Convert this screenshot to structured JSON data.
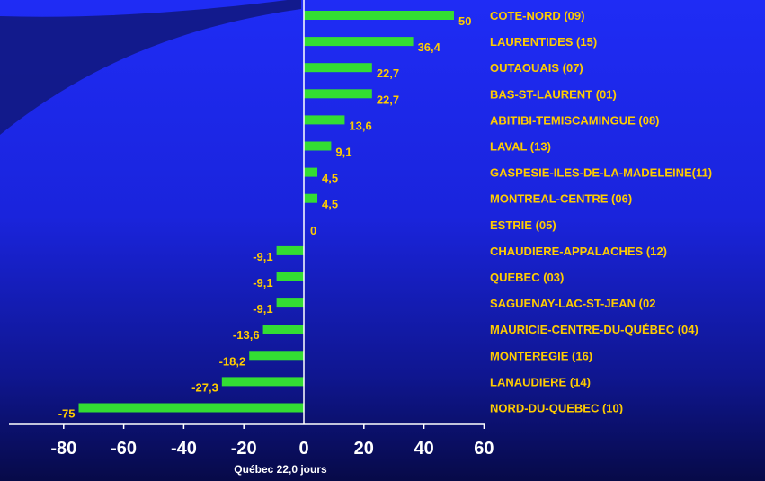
{
  "chart_data": {
    "type": "bar",
    "orientation": "horizontal",
    "categories": [
      "COTE-NORD (09)",
      "LAURENTIDES (15)",
      "OUTAOUAIS (07)",
      "BAS-ST-LAURENT (01)",
      "ABITIBI-TEMISCAMINGUE (08)",
      "LAVAL (13)",
      "GASPESIE-ILES-DE-LA-MADELEINE(11)",
      "MONTREAL-CENTRE (06)",
      "ESTRIE (05)",
      "CHAUDIERE-APPALACHES (12)",
      "QUEBEC (03)",
      "SAGUENAY-LAC-ST-JEAN (02",
      "MAURICIE-CENTRE-DU-QUÉBEC (04)",
      "MONTEREGIE (16)",
      "LANAUDIERE (14)",
      "NORD-DU-QUEBEC (10)"
    ],
    "values": [
      50,
      36.4,
      22.7,
      22.7,
      13.6,
      9.1,
      4.5,
      4.5,
      0,
      -9.1,
      -9.1,
      -9.1,
      -13.6,
      -18.2,
      -27.3,
      -75
    ],
    "value_labels": [
      "50",
      "36,4",
      "22,7",
      "22,7",
      "13,6",
      "9,1",
      "4,5",
      "4,5",
      "0",
      "-9,1",
      "-9,1",
      "-9,1",
      "-13,6",
      "-18,2",
      "-27,3",
      "-75"
    ],
    "xlim": [
      -100,
      60
    ],
    "xticks": [
      -80,
      -60,
      -40,
      -20,
      0,
      20,
      40,
      60
    ],
    "xtick_labels": [
      "-80",
      "-60",
      "-40",
      "-20",
      "0",
      "20",
      "40",
      "60"
    ],
    "xlabel": "Québec 22,0 jours",
    "title": "",
    "grid": false,
    "legend": "none"
  },
  "colors": {
    "bar": "#33dd33",
    "value_text": "#ffcc00",
    "category_text": "#ffcc00",
    "axis": "#ffffff",
    "tick_text": "#ffffff"
  }
}
